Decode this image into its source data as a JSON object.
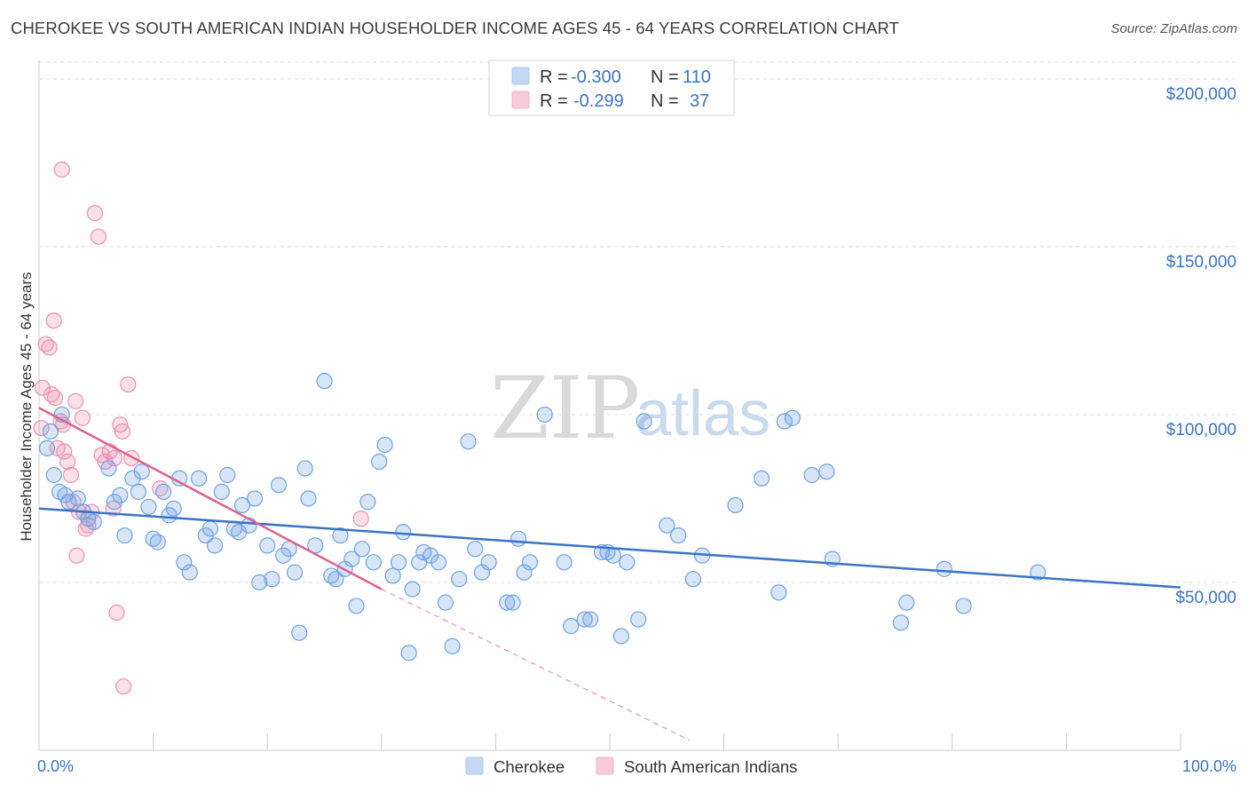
{
  "header": {
    "title": "CHEROKEE VS SOUTH AMERICAN INDIAN HOUSEHOLDER INCOME AGES 45 - 64 YEARS CORRELATION CHART",
    "source": "Source: ZipAtlas.com"
  },
  "watermark": {
    "zip": "ZIP",
    "atlas": "atlas"
  },
  "legend": {
    "rows": [
      {
        "r_label": "R = ",
        "r_value": "-0.300",
        "n_label": "N = ",
        "n_value": "110",
        "color": "#a9c8f0"
      },
      {
        "r_label": "R = ",
        "r_value": "-0.299",
        "n_label": "N = ",
        "n_value": "37",
        "color": "#f6b3c8"
      }
    ]
  },
  "bottom_legend": [
    {
      "label": "Cherokee",
      "color": "#a9c8f0"
    },
    {
      "label": "South American Indians",
      "color": "#f6b3c8"
    }
  ],
  "chart_data": {
    "type": "scatter",
    "xlabel": "",
    "ylabel": "Householder Income Ages 45 - 64 years",
    "xlim": [
      0,
      100
    ],
    "ylim": [
      0,
      205000
    ],
    "x_tick_labels": [
      "0.0%",
      "100.0%"
    ],
    "y_ticks": [
      50000,
      100000,
      150000,
      200000
    ],
    "y_tick_labels": [
      "$50,000",
      "$100,000",
      "$150,000",
      "$200,000"
    ],
    "grid": "horizontal dashed",
    "legend_placement": "top-center",
    "colors": {
      "cherokee": "#6fa3e4",
      "cherokee_line": "#3a73c8",
      "sai": "#ef8fb0",
      "sai_line": "#e0628c"
    },
    "series": [
      {
        "name": "Cherokee",
        "trend": {
          "x": [
            0,
            100
          ],
          "y": [
            72000,
            48500
          ]
        },
        "points": [
          [
            0.7,
            90000
          ],
          [
            1.3,
            82000
          ],
          [
            1.8,
            77000
          ],
          [
            2.3,
            76000
          ],
          [
            2.6,
            74000
          ],
          [
            3.4,
            75000
          ],
          [
            3.9,
            71000
          ],
          [
            4.3,
            69000
          ],
          [
            4.8,
            68000
          ],
          [
            6.1,
            84000
          ],
          [
            6.6,
            74000
          ],
          [
            7.1,
            76000
          ],
          [
            7.5,
            64000
          ],
          [
            8.2,
            81000
          ],
          [
            8.7,
            77000
          ],
          [
            9.0,
            83000
          ],
          [
            9.6,
            72500
          ],
          [
            10.0,
            63000
          ],
          [
            10.4,
            62000
          ],
          [
            10.9,
            77000
          ],
          [
            11.4,
            70000
          ],
          [
            11.8,
            72000
          ],
          [
            12.3,
            81000
          ],
          [
            12.7,
            56000
          ],
          [
            13.2,
            53000
          ],
          [
            14.0,
            81000
          ],
          [
            14.6,
            64000
          ],
          [
            15.0,
            66000
          ],
          [
            15.4,
            61000
          ],
          [
            16.0,
            77000
          ],
          [
            16.5,
            82000
          ],
          [
            17.1,
            66000
          ],
          [
            17.5,
            65000
          ],
          [
            17.8,
            73000
          ],
          [
            18.4,
            67000
          ],
          [
            18.9,
            75000
          ],
          [
            19.3,
            50000
          ],
          [
            20.0,
            61000
          ],
          [
            20.4,
            51000
          ],
          [
            21.0,
            79000
          ],
          [
            21.4,
            58000
          ],
          [
            21.9,
            60000
          ],
          [
            22.4,
            53000
          ],
          [
            22.8,
            35000
          ],
          [
            23.3,
            84000
          ],
          [
            23.6,
            75000
          ],
          [
            24.2,
            61000
          ],
          [
            25.0,
            110000
          ],
          [
            25.6,
            52000
          ],
          [
            26.0,
            51000
          ],
          [
            26.4,
            64000
          ],
          [
            26.8,
            54000
          ],
          [
            27.4,
            57000
          ],
          [
            27.8,
            43000
          ],
          [
            28.3,
            60000
          ],
          [
            28.8,
            74000
          ],
          [
            29.3,
            56000
          ],
          [
            29.8,
            86000
          ],
          [
            30.3,
            91000
          ],
          [
            31.0,
            52000
          ],
          [
            31.5,
            56000
          ],
          [
            31.9,
            65000
          ],
          [
            32.4,
            29000
          ],
          [
            32.7,
            48000
          ],
          [
            33.3,
            56000
          ],
          [
            33.7,
            59000
          ],
          [
            34.3,
            58000
          ],
          [
            35.0,
            56000
          ],
          [
            35.6,
            44000
          ],
          [
            36.2,
            31000
          ],
          [
            36.8,
            51000
          ],
          [
            37.6,
            92000
          ],
          [
            38.2,
            60000
          ],
          [
            38.8,
            53000
          ],
          [
            39.4,
            56000
          ],
          [
            41.0,
            44000
          ],
          [
            41.5,
            44000
          ],
          [
            42.0,
            63000
          ],
          [
            42.5,
            53000
          ],
          [
            43.0,
            56000
          ],
          [
            44.3,
            100000
          ],
          [
            46.0,
            56000
          ],
          [
            46.6,
            37000
          ],
          [
            47.8,
            39000
          ],
          [
            48.3,
            39000
          ],
          [
            49.3,
            59000
          ],
          [
            49.8,
            59000
          ],
          [
            50.3,
            58000
          ],
          [
            51.0,
            34000
          ],
          [
            51.5,
            56000
          ],
          [
            52.5,
            39000
          ],
          [
            53.0,
            98000
          ],
          [
            55.0,
            67000
          ],
          [
            56.0,
            64000
          ],
          [
            57.3,
            51000
          ],
          [
            58.1,
            58000
          ],
          [
            61.0,
            73000
          ],
          [
            63.3,
            81000
          ],
          [
            66.0,
            99000
          ],
          [
            64.8,
            47000
          ],
          [
            65.3,
            98000
          ],
          [
            67.7,
            82000
          ],
          [
            69.0,
            83000
          ],
          [
            69.5,
            57000
          ],
          [
            75.5,
            38000
          ],
          [
            76.0,
            44000
          ],
          [
            79.3,
            54000
          ],
          [
            81.0,
            43000
          ],
          [
            87.5,
            53000
          ],
          [
            1.0,
            95000
          ],
          [
            2.0,
            100000
          ]
        ]
      },
      {
        "name": "South American Indians",
        "trend": {
          "x": [
            0,
            30
          ],
          "y": [
            102000,
            48000
          ],
          "dashed_extension": {
            "x": [
              30,
              57
            ],
            "y": [
              48000,
              3000
            ]
          }
        },
        "points": [
          [
            0.3,
            108000
          ],
          [
            0.6,
            121000
          ],
          [
            0.9,
            120000
          ],
          [
            1.1,
            106000
          ],
          [
            1.3,
            128000
          ],
          [
            1.4,
            105000
          ],
          [
            1.6,
            90000
          ],
          [
            1.9,
            98000
          ],
          [
            2.1,
            97000
          ],
          [
            2.2,
            89000
          ],
          [
            2.5,
            86000
          ],
          [
            2.8,
            82000
          ],
          [
            3.0,
            74000
          ],
          [
            3.2,
            104000
          ],
          [
            3.3,
            58000
          ],
          [
            3.5,
            71000
          ],
          [
            3.8,
            99000
          ],
          [
            4.1,
            66000
          ],
          [
            4.3,
            67000
          ],
          [
            4.6,
            71000
          ],
          [
            4.9,
            160000
          ],
          [
            5.2,
            153000
          ],
          [
            5.5,
            88000
          ],
          [
            5.8,
            86000
          ],
          [
            6.2,
            89000
          ],
          [
            6.5,
            72000
          ],
          [
            6.8,
            41000
          ],
          [
            6.6,
            87000
          ],
          [
            7.1,
            97000
          ],
          [
            7.3,
            95000
          ],
          [
            7.4,
            19000
          ],
          [
            7.8,
            109000
          ],
          [
            8.1,
            87000
          ],
          [
            2.0,
            173000
          ],
          [
            10.6,
            78000
          ],
          [
            28.2,
            69000
          ],
          [
            0.2,
            96000
          ]
        ]
      }
    ]
  }
}
